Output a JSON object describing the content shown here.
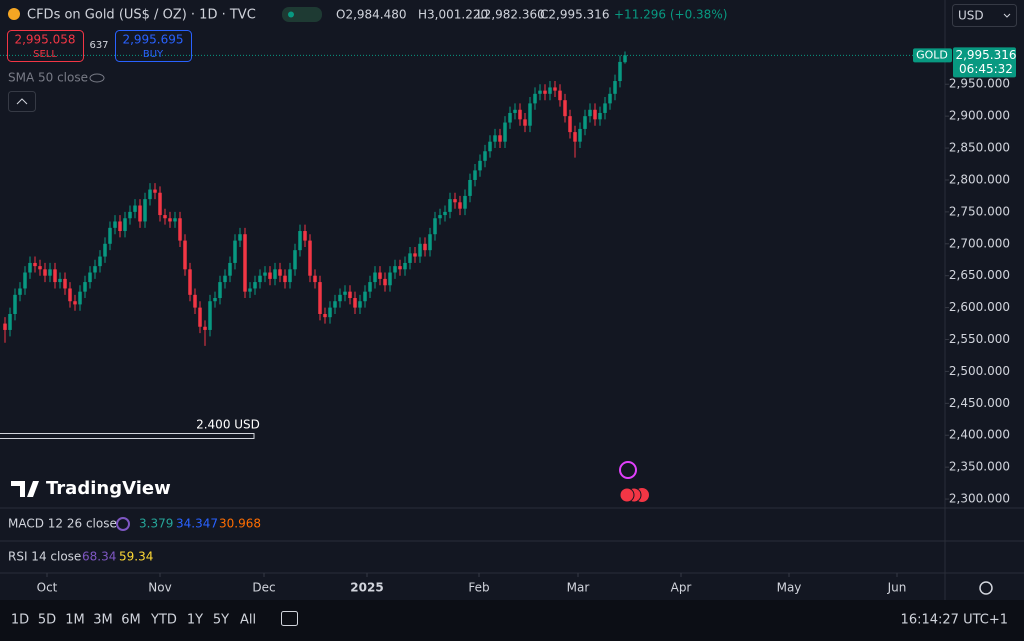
{
  "header": {
    "title": "CFDs on Gold (US$ / OZ) · 1D · TVC",
    "open": "O2,984.480",
    "high": "H3,001.220",
    "low": "L2,982.360",
    "close": "C2,995.316",
    "change": "+11.296 (+0.38%)",
    "sell_price": "2,995.058",
    "sell": "SELL",
    "spread": "637",
    "buy_price": "2,995.695",
    "buy": "BUY",
    "sma": "SMA 50 close",
    "ruler": "2.400 USD",
    "logo": "TradingView",
    "currency": "USD"
  },
  "indicators": {
    "macd": {
      "name": "MACD 12 26 close",
      "values": [
        "3.379",
        "34.347",
        "30.968"
      ]
    },
    "rsi": {
      "name": "RSI 14 close",
      "values": [
        "68.34",
        "59.34"
      ]
    }
  },
  "toolbar": {
    "ranges": [
      "1D",
      "5D",
      "1M",
      "3M",
      "6M",
      "YTD",
      "1Y",
      "5Y",
      "All"
    ],
    "clock": "16:14:27 UTC+1"
  },
  "chart_data": {
    "type": "candlestick",
    "grid": false,
    "xlim": [
      -1,
      188
    ],
    "ylim": [
      2286,
      3082
    ],
    "xticks": [
      {
        "value": 8.4,
        "label": "Oct"
      },
      {
        "value": 31,
        "label": "Nov"
      },
      {
        "value": 51.8,
        "label": "Dec"
      },
      {
        "value": 72.4,
        "label": "2025"
      },
      {
        "value": 94.8,
        "label": "Feb"
      },
      {
        "value": 114.6,
        "label": "Mar"
      },
      {
        "value": 135.2,
        "label": "Apr"
      },
      {
        "value": 156.8,
        "label": "May"
      },
      {
        "value": 178.4,
        "label": "Jun"
      }
    ],
    "yticks": [
      {
        "value": 2300,
        "label": "2,300.000"
      },
      {
        "value": 2350,
        "label": "2,350.000"
      },
      {
        "value": 2400,
        "label": "2,400.000"
      },
      {
        "value": 2450,
        "label": "2,450.000"
      },
      {
        "value": 2500,
        "label": "2,500.000"
      },
      {
        "value": 2550,
        "label": "2,550.000"
      },
      {
        "value": 2600,
        "label": "2,600.000"
      },
      {
        "value": 2650,
        "label": "2,650.000"
      },
      {
        "value": 2700,
        "label": "2,700.000"
      },
      {
        "value": 2750,
        "label": "2,750.000"
      },
      {
        "value": 2800,
        "label": "2,800.000"
      },
      {
        "value": 2850,
        "label": "2,850.000"
      },
      {
        "value": 2900,
        "label": "2,900.000"
      },
      {
        "value": 2950,
        "label": "2,950.000"
      }
    ],
    "series": [
      {
        "name": "GOLD",
        "up_color": "#089981",
        "down_color": "#f23645",
        "last_value_label": "2,995.316",
        "countdown": "06:45:32",
        "open": [
          2575,
          2565,
          2590,
          2620,
          2630,
          2655,
          2670,
          2665,
          2660,
          2650,
          2660,
          2640,
          2645,
          2630,
          2610,
          2605,
          2625,
          2640,
          2655,
          2665,
          2680,
          2700,
          2725,
          2735,
          2720,
          2740,
          2750,
          2760,
          2735,
          2770,
          2785,
          2780,
          2745,
          2740,
          2735,
          2740,
          2705,
          2660,
          2620,
          2600,
          2570,
          2565,
          2610,
          2615,
          2640,
          2650,
          2670,
          2705,
          2715,
          2625,
          2630,
          2640,
          2650,
          2655,
          2645,
          2660,
          2650,
          2640,
          2660,
          2690,
          2720,
          2705,
          2650,
          2640,
          2590,
          2585,
          2600,
          2610,
          2620,
          2625,
          2615,
          2600,
          2610,
          2625,
          2640,
          2655,
          2645,
          2635,
          2655,
          2665,
          2660,
          2670,
          2685,
          2680,
          2700,
          2690,
          2715,
          2740,
          2745,
          2750,
          2770,
          2765,
          2755,
          2775,
          2800,
          2815,
          2830,
          2845,
          2860,
          2870,
          2860,
          2890,
          2905,
          2910,
          2895,
          2885,
          2920,
          2935,
          2940,
          2935,
          2945,
          2940,
          2925,
          2900,
          2875,
          2860,
          2880,
          2900,
          2910,
          2895,
          2905,
          2920,
          2935,
          2955,
          2984.48
        ],
        "high": [
          2585,
          2600,
          2630,
          2640,
          2665,
          2680,
          2680,
          2675,
          2670,
          2670,
          2670,
          2655,
          2655,
          2640,
          2620,
          2635,
          2650,
          2665,
          2675,
          2690,
          2710,
          2735,
          2745,
          2745,
          2750,
          2760,
          2770,
          2770,
          2780,
          2795,
          2795,
          2790,
          2755,
          2750,
          2750,
          2750,
          2715,
          2670,
          2630,
          2610,
          2580,
          2620,
          2625,
          2650,
          2660,
          2680,
          2715,
          2725,
          2725,
          2640,
          2650,
          2660,
          2665,
          2665,
          2670,
          2670,
          2660,
          2670,
          2700,
          2730,
          2730,
          2715,
          2660,
          2650,
          2600,
          2610,
          2620,
          2630,
          2635,
          2635,
          2625,
          2620,
          2635,
          2650,
          2665,
          2665,
          2655,
          2665,
          2675,
          2675,
          2680,
          2695,
          2695,
          2710,
          2710,
          2725,
          2750,
          2755,
          2760,
          2780,
          2780,
          2775,
          2785,
          2810,
          2825,
          2840,
          2855,
          2870,
          2880,
          2880,
          2900,
          2915,
          2920,
          2920,
          2905,
          2930,
          2945,
          2950,
          2950,
          2955,
          2955,
          2950,
          2935,
          2910,
          2885,
          2890,
          2910,
          2920,
          2920,
          2915,
          2930,
          2945,
          2965,
          2995,
          3001.22
        ],
        "low": [
          2545,
          2555,
          2580,
          2610,
          2620,
          2645,
          2655,
          2650,
          2640,
          2640,
          2630,
          2630,
          2620,
          2600,
          2595,
          2595,
          2615,
          2630,
          2645,
          2655,
          2670,
          2690,
          2715,
          2710,
          2710,
          2730,
          2740,
          2725,
          2725,
          2760,
          2770,
          2735,
          2730,
          2725,
          2725,
          2695,
          2650,
          2610,
          2590,
          2560,
          2540,
          2555,
          2600,
          2605,
          2630,
          2640,
          2660,
          2695,
          2615,
          2615,
          2620,
          2630,
          2640,
          2635,
          2635,
          2640,
          2630,
          2630,
          2650,
          2680,
          2695,
          2640,
          2630,
          2580,
          2575,
          2575,
          2590,
          2600,
          2610,
          2605,
          2590,
          2590,
          2600,
          2615,
          2630,
          2635,
          2625,
          2625,
          2645,
          2650,
          2650,
          2660,
          2670,
          2670,
          2680,
          2680,
          2705,
          2730,
          2735,
          2740,
          2755,
          2745,
          2745,
          2765,
          2790,
          2805,
          2820,
          2835,
          2850,
          2850,
          2850,
          2880,
          2895,
          2885,
          2875,
          2875,
          2910,
          2925,
          2925,
          2925,
          2930,
          2915,
          2890,
          2865,
          2835,
          2850,
          2870,
          2890,
          2885,
          2885,
          2895,
          2910,
          2925,
          2945,
          2982.36
        ],
        "close": [
          2565,
          2590,
          2620,
          2630,
          2655,
          2670,
          2665,
          2660,
          2650,
          2660,
          2640,
          2645,
          2630,
          2610,
          2605,
          2625,
          2640,
          2655,
          2665,
          2680,
          2700,
          2725,
          2735,
          2720,
          2740,
          2750,
          2760,
          2735,
          2770,
          2785,
          2780,
          2745,
          2740,
          2735,
          2740,
          2705,
          2660,
          2620,
          2600,
          2570,
          2565,
          2610,
          2615,
          2640,
          2650,
          2670,
          2705,
          2715,
          2625,
          2630,
          2640,
          2650,
          2655,
          2645,
          2660,
          2650,
          2640,
          2660,
          2690,
          2720,
          2705,
          2650,
          2640,
          2590,
          2585,
          2600,
          2610,
          2620,
          2625,
          2615,
          2600,
          2610,
          2625,
          2640,
          2655,
          2645,
          2635,
          2655,
          2665,
          2660,
          2670,
          2685,
          2680,
          2700,
          2690,
          2715,
          2740,
          2745,
          2750,
          2770,
          2765,
          2755,
          2775,
          2800,
          2815,
          2830,
          2845,
          2860,
          2870,
          2860,
          2890,
          2905,
          2910,
          2895,
          2885,
          2920,
          2935,
          2940,
          2935,
          2945,
          2940,
          2925,
          2900,
          2875,
          2860,
          2880,
          2900,
          2910,
          2895,
          2905,
          2920,
          2935,
          2955,
          2985,
          2995.316
        ]
      }
    ]
  }
}
